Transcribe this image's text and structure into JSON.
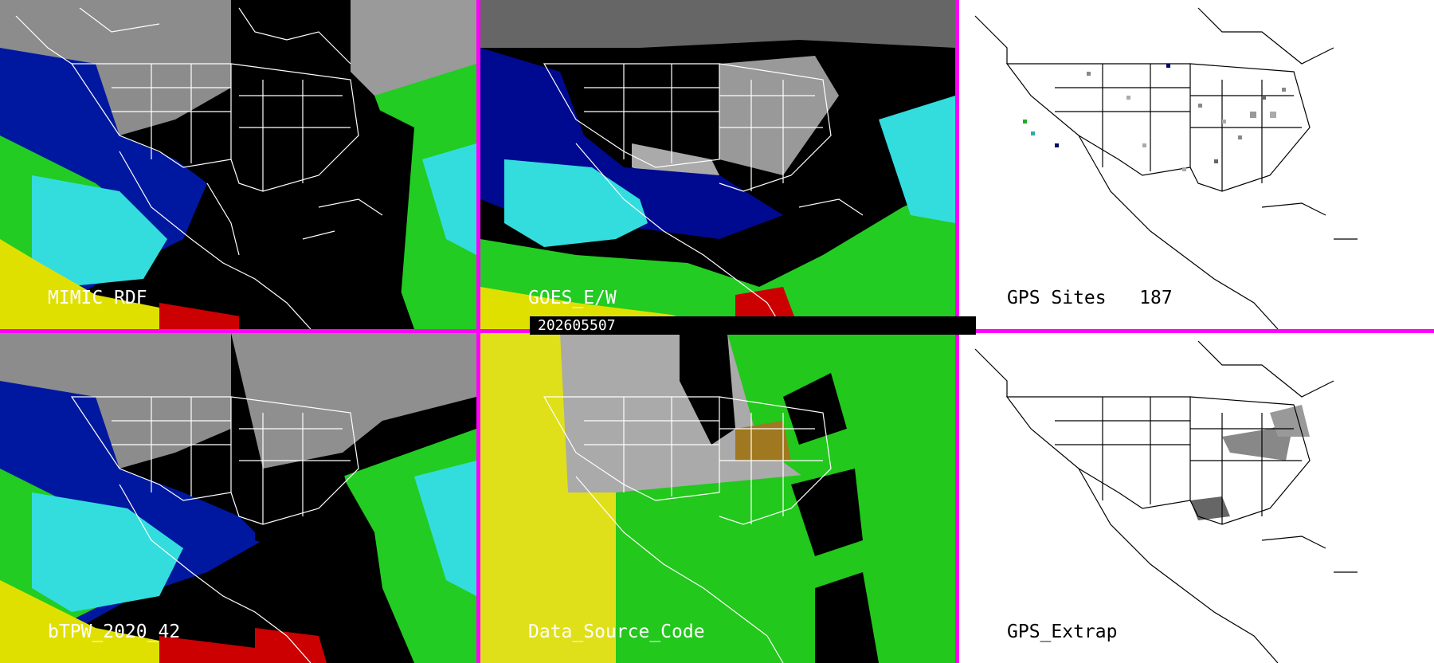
{
  "panels": [
    {
      "id": "p1",
      "label": "MIMIC RDF"
    },
    {
      "id": "p2",
      "label": "GOES_E/W"
    },
    {
      "id": "p3",
      "label": "GPS Sites   187"
    },
    {
      "id": "p4",
      "label": "bTPW_2020_42"
    },
    {
      "id": "p5",
      "label": "Data_Source_Code"
    },
    {
      "id": "p6",
      "label": "GPS_Extrap"
    }
  ],
  "timestamp": "202605507",
  "colors": {
    "separator": "#ff00ff",
    "tpw_low": "#000080",
    "tpw_mid": "#00e5e5",
    "tpw_green": "#22cc22",
    "tpw_yellow": "#e0e000",
    "tpw_red": "#cc0000",
    "source_yellow": "#dfe01a",
    "source_green": "#22c81c",
    "source_gray": "#aaaaaa",
    "map_outline_light": "#ffffff",
    "map_outline_dark": "#000000"
  }
}
